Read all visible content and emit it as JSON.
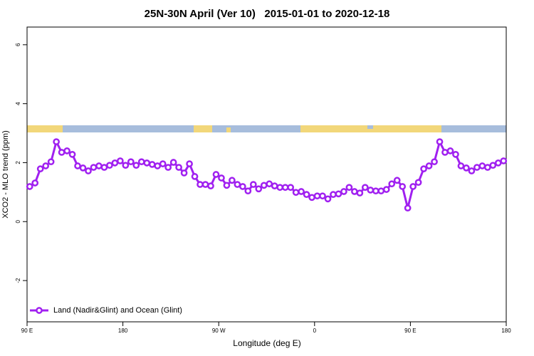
{
  "chart_data": {
    "type": "line",
    "title": "25N-30N April (Ver 10)   2015-01-01 to 2020-12-18",
    "xlabel": "Longitude (deg E)",
    "ylabel": "XCO2 - MLO trend (ppm)",
    "xlim": [
      90,
      540
    ],
    "ylim": [
      -3.4,
      6.6
    ],
    "xticks": [
      {
        "value": 90,
        "label": "90 E"
      },
      180,
      {
        "value": 270,
        "label": "90 W"
      },
      {
        "value": 360,
        "label": "0"
      },
      {
        "value": 450,
        "label": "90 E"
      },
      {
        "value": 540,
        "label": "180"
      }
    ],
    "yticks": [
      -2,
      0,
      2,
      4,
      6
    ],
    "legend": "bottom-left",
    "x": [
      92.5,
      97.5,
      102.5,
      107.5,
      112.5,
      117.5,
      122.5,
      127.5,
      132.5,
      137.5,
      142.5,
      147.5,
      152.5,
      157.5,
      162.5,
      167.5,
      172.5,
      177.5,
      182.5,
      187.5,
      192.5,
      197.5,
      202.5,
      207.5,
      212.5,
      217.5,
      222.5,
      227.5,
      232.5,
      237.5,
      242.5,
      247.5,
      252.5,
      257.5,
      262.5,
      267.5,
      272.5,
      277.5,
      282.5,
      287.5,
      292.5,
      297.5,
      302.5,
      307.5,
      312.5,
      317.5,
      322.5,
      327.5,
      332.5,
      337.5,
      342.5,
      347.5,
      352.5,
      357.5,
      362.5,
      367.5,
      372.5,
      377.5,
      382.5,
      387.5,
      392.5,
      397.5,
      402.5,
      407.5,
      412.5,
      417.5,
      422.5,
      427.5,
      432.5,
      437.5,
      442.5,
      447.5,
      452.5,
      457.5,
      462.5,
      467.5,
      472.5,
      477.5,
      482.5,
      487.5,
      492.5,
      497.5,
      502.5,
      507.5,
      512.5,
      517.5,
      522.5,
      527.5,
      532.5,
      537.5
    ],
    "series": [
      {
        "name": "Land (Nadir&Glint) and Ocean (Glint)",
        "color": "#a020f0",
        "values": [
          1.19,
          1.31,
          1.79,
          1.89,
          2.03,
          2.71,
          2.35,
          2.4,
          2.28,
          1.89,
          1.82,
          1.72,
          1.84,
          1.89,
          1.84,
          1.91,
          1.99,
          2.06,
          1.91,
          2.03,
          1.91,
          2.03,
          1.99,
          1.94,
          1.89,
          1.96,
          1.84,
          2.01,
          1.84,
          1.65,
          1.96,
          1.53,
          1.26,
          1.26,
          1.21,
          1.6,
          1.48,
          1.23,
          1.4,
          1.26,
          1.19,
          1.04,
          1.26,
          1.11,
          1.23,
          1.28,
          1.21,
          1.16,
          1.16,
          1.16,
          0.99,
          1.02,
          0.92,
          0.82,
          0.87,
          0.87,
          0.77,
          0.92,
          0.94,
          1.02,
          1.16,
          1.02,
          0.97,
          1.16,
          1.07,
          1.04,
          1.04,
          1.09,
          1.28,
          1.4,
          1.19,
          0.46,
          1.19,
          1.33,
          1.79,
          1.89,
          2.03,
          2.71,
          2.35,
          2.4,
          2.28,
          1.89,
          1.82,
          1.72,
          1.84,
          1.89,
          1.84,
          1.91,
          1.99,
          2.06
        ]
      }
    ]
  }
}
